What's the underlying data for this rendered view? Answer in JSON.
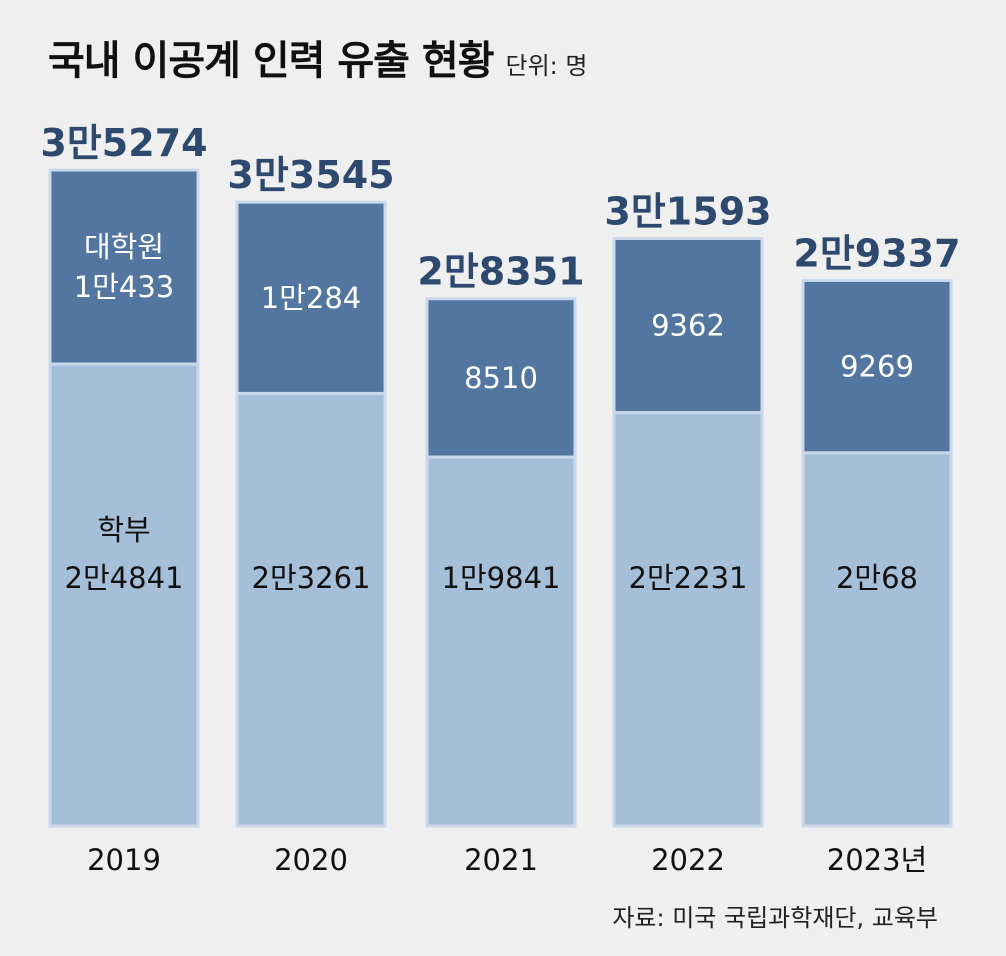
{
  "title": "국내 이공계 인력 유출 현황",
  "unit": "단위: 명",
  "source": "자료: 미국 국립과학재단, 교육부",
  "colors": {
    "background": "#efeff0",
    "graduate": "#5276a0",
    "undergraduate": "#a6bfd8",
    "total_label": "#2d4a6e",
    "border": "#c9d8ea"
  },
  "chart_data": {
    "type": "bar",
    "stacked": true,
    "categories": [
      "2019",
      "2020",
      "2021",
      "2022",
      "2023년"
    ],
    "series": [
      {
        "name": "학부",
        "values": [
          24841,
          23261,
          19841,
          22231,
          20068
        ],
        "value_labels": [
          "2만4841",
          "2만3261",
          "1만9841",
          "2만2231",
          "2만68"
        ]
      },
      {
        "name": "대학원",
        "values": [
          10433,
          10284,
          8510,
          9362,
          9269
        ],
        "value_labels": [
          "1만433",
          "1만284",
          "8510",
          "9362",
          "9269"
        ]
      }
    ],
    "totals": [
      35274,
      33545,
      28351,
      31593,
      29337
    ],
    "total_labels": [
      "3만5274",
      "3만3545",
      "2만8351",
      "3만1593",
      "2만9337"
    ],
    "ylim": [
      0,
      35274
    ],
    "grid": false,
    "legend": "inline-first-bar"
  }
}
